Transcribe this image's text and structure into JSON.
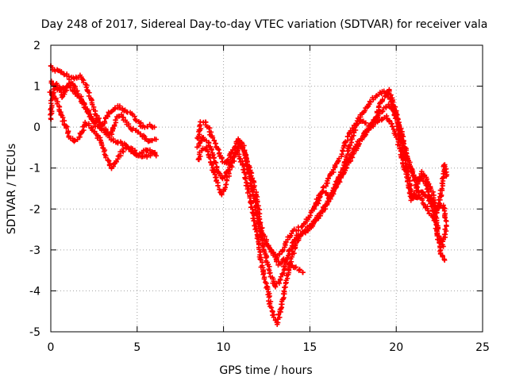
{
  "chart_data": {
    "type": "scatter",
    "title": "Day 248 of 2017, Sidereal Day-to-day VTEC variation (SDTVAR) for receiver vala",
    "xlabel": "GPS time / hours",
    "ylabel": "SDTVAR / TECUs",
    "xlim": [
      0,
      25
    ],
    "ylim": [
      -5,
      2
    ],
    "xticks": [
      0,
      5,
      10,
      15,
      20,
      25
    ],
    "yticks": [
      2,
      1,
      0,
      -1,
      -2,
      -3,
      -4,
      -5
    ],
    "grid": true,
    "legend": "none",
    "marker": "plus",
    "color": "#ff0000",
    "series": [
      {
        "name": "trace-1",
        "x": [
          0.0,
          0.2,
          0.5,
          0.8,
          1.1,
          1.4,
          1.7,
          2.0,
          2.3,
          2.6,
          2.9,
          3.2,
          3.5,
          3.8,
          4.1,
          4.4,
          4.7,
          5.0,
          5.3,
          5.6,
          5.9,
          6.1
        ],
        "y": [
          1.5,
          1.4,
          1.35,
          1.3,
          1.2,
          1.2,
          1.25,
          1.05,
          0.7,
          0.35,
          0.05,
          -0.1,
          -0.2,
          0.2,
          0.3,
          0.1,
          -0.05,
          -0.1,
          -0.2,
          -0.35,
          -0.3,
          -0.3
        ]
      },
      {
        "name": "trace-2",
        "x": [
          0.0,
          0.2,
          0.5,
          0.8,
          1.1,
          1.4,
          1.7,
          2.0,
          2.3,
          2.6,
          2.9,
          3.2,
          3.5,
          3.8,
          4.1,
          4.4,
          4.7,
          5.0,
          5.3,
          5.6,
          5.9,
          6.1
        ],
        "y": [
          1.1,
          1.0,
          0.9,
          0.95,
          1.0,
          0.85,
          0.7,
          0.5,
          0.25,
          0.05,
          -0.05,
          -0.15,
          -0.3,
          -0.35,
          -0.4,
          -0.45,
          -0.6,
          -0.7,
          -0.6,
          -0.55,
          -0.6,
          -0.7
        ]
      },
      {
        "name": "trace-3",
        "x": [
          0.0,
          0.2,
          0.5,
          0.8,
          1.1,
          1.4,
          1.7,
          2.0,
          2.3,
          2.6,
          2.9,
          3.2,
          3.5,
          3.8,
          4.1,
          4.4,
          4.7,
          5.0,
          5.3,
          5.6,
          5.9,
          6.1
        ],
        "y": [
          0.85,
          0.75,
          0.45,
          0.1,
          -0.25,
          -0.35,
          -0.2,
          0.1,
          0.0,
          -0.15,
          -0.35,
          -0.7,
          -1.0,
          -0.8,
          -0.6,
          -0.5,
          -0.55,
          -0.65,
          -0.75,
          -0.7,
          -0.65,
          -0.7
        ]
      },
      {
        "name": "trace-4",
        "x": [
          0.0,
          0.05,
          0.15,
          0.3,
          0.5,
          0.7,
          0.9,
          1.2,
          1.5,
          1.8,
          2.1,
          2.4,
          2.7,
          3.0,
          3.3,
          3.6,
          3.9,
          4.2,
          4.5,
          4.8,
          5.1,
          5.4,
          5.7,
          6.0
        ],
        "y": [
          0.2,
          0.6,
          0.9,
          1.05,
          0.95,
          0.75,
          0.95,
          1.1,
          0.9,
          0.65,
          0.4,
          0.2,
          0.1,
          0.05,
          0.3,
          0.45,
          0.5,
          0.45,
          0.35,
          0.25,
          0.1,
          0.0,
          0.05,
          0.0
        ]
      },
      {
        "name": "trace-5",
        "x": [
          8.5,
          8.7,
          9.0,
          9.3,
          9.6,
          9.9,
          10.2,
          10.5,
          10.8,
          11.1,
          11.4,
          11.7,
          12.0,
          12.2,
          12.5,
          12.8,
          13.1,
          13.4,
          13.7,
          14.0,
          14.3,
          14.6,
          14.9,
          15.2,
          15.5,
          15.8,
          16.1,
          16.4,
          16.7,
          17.0,
          17.3,
          17.6,
          17.9,
          18.2,
          18.5,
          18.8,
          19.1,
          19.4,
          19.7,
          20.0,
          20.3,
          20.6,
          20.9,
          21.2,
          21.5,
          21.8,
          22.1,
          22.4,
          22.7,
          22.9
        ],
        "y": [
          -0.3,
          0.1,
          0.1,
          -0.2,
          -0.5,
          -0.8,
          -0.9,
          -0.6,
          -0.3,
          -0.4,
          -0.9,
          -1.3,
          -1.9,
          -2.5,
          -2.85,
          -3.05,
          -3.2,
          -3.05,
          -2.75,
          -2.55,
          -2.5,
          -2.4,
          -2.25,
          -2.0,
          -1.8,
          -1.5,
          -1.25,
          -1.0,
          -0.8,
          -0.45,
          -0.15,
          0.05,
          0.25,
          0.4,
          0.6,
          0.75,
          0.85,
          0.85,
          0.65,
          0.2,
          -0.4,
          -1.0,
          -1.6,
          -1.75,
          -1.55,
          -1.75,
          -1.8,
          -2.0,
          -1.9,
          -2.3
        ]
      },
      {
        "name": "trace-6",
        "x": [
          8.5,
          8.7,
          9.0,
          9.3,
          9.6,
          9.9,
          10.2,
          10.5,
          10.8,
          11.1,
          11.4,
          11.7,
          12.0,
          12.2,
          12.5,
          12.8,
          13.1,
          13.4,
          13.7,
          14.0,
          14.3,
          14.6,
          14.9,
          15.2,
          15.5,
          15.8,
          16.1,
          16.4,
          16.7,
          17.0,
          17.3,
          17.6,
          17.9,
          18.2,
          18.5,
          18.8,
          19.1,
          19.4,
          19.7,
          20.0,
          20.3,
          20.6,
          20.9,
          21.2,
          21.5,
          21.8,
          22.1,
          22.4,
          22.7,
          22.9
        ],
        "y": [
          -0.8,
          -0.6,
          -0.5,
          -0.9,
          -1.3,
          -1.65,
          -1.3,
          -0.9,
          -0.55,
          -0.9,
          -1.5,
          -2.1,
          -2.8,
          -3.35,
          -3.9,
          -4.5,
          -4.8,
          -4.3,
          -3.6,
          -3.1,
          -2.75,
          -2.55,
          -2.45,
          -2.35,
          -2.2,
          -2.0,
          -1.8,
          -1.5,
          -1.25,
          -1.0,
          -0.75,
          -0.5,
          -0.3,
          -0.15,
          0.0,
          0.1,
          0.2,
          0.25,
          0.1,
          -0.2,
          -0.65,
          -1.2,
          -1.8,
          -1.45,
          -1.1,
          -1.3,
          -1.6,
          -2.55,
          -2.9,
          -2.4
        ]
      },
      {
        "name": "trace-7",
        "x": [
          8.5,
          8.8,
          9.1,
          9.4,
          9.7,
          10.0,
          10.3,
          10.6,
          10.9,
          11.2,
          11.5,
          11.8,
          12.1,
          12.4,
          12.7,
          13.0,
          13.3,
          13.6,
          13.9,
          14.2,
          14.5,
          14.8,
          15.1,
          15.4,
          15.7,
          16.0,
          16.3,
          16.6,
          16.9,
          17.2,
          17.5,
          17.8,
          18.1,
          18.4,
          18.7,
          19.0,
          19.3,
          19.6,
          19.9,
          20.2,
          20.5,
          20.8,
          21.1,
          21.4,
          21.7,
          22.0,
          22.3,
          22.6,
          22.8
        ],
        "y": [
          -0.5,
          -0.25,
          -0.35,
          -0.7,
          -1.1,
          -1.25,
          -1.0,
          -0.7,
          -0.4,
          -0.6,
          -1.2,
          -1.8,
          -2.5,
          -3.1,
          -3.55,
          -3.9,
          -3.75,
          -3.3,
          -2.95,
          -2.7,
          -2.6,
          -2.55,
          -2.4,
          -2.2,
          -2.05,
          -1.85,
          -1.65,
          -1.4,
          -1.15,
          -0.9,
          -0.65,
          -0.45,
          -0.25,
          -0.05,
          0.15,
          0.3,
          0.45,
          0.55,
          0.4,
          0.05,
          -0.5,
          -0.95,
          -1.3,
          -1.25,
          -1.35,
          -1.8,
          -2.4,
          -3.1,
          -3.25
        ]
      },
      {
        "name": "trace-8",
        "x": [
          12.6,
          12.9,
          13.2,
          13.5,
          13.8,
          14.1,
          14.4,
          14.6
        ],
        "y": [
          -2.9,
          -3.1,
          -3.35,
          -3.25,
          -3.35,
          -3.4,
          -3.5,
          -3.55
        ]
      },
      {
        "name": "trace-9",
        "x": [
          15.2,
          15.5,
          15.8,
          16.1,
          16.4,
          16.7,
          17.0,
          17.3,
          17.6,
          17.9,
          18.2,
          18.5,
          18.8,
          19.1,
          19.4,
          19.6,
          19.9,
          20.2,
          20.5,
          20.8,
          21.1,
          21.4,
          21.7,
          22.0,
          22.3,
          22.6,
          22.8,
          22.9
        ],
        "y": [
          -2.0,
          -1.7,
          -1.55,
          -1.7,
          -1.5,
          -1.25,
          -0.9,
          -0.45,
          -0.05,
          0.2,
          0.1,
          0.0,
          0.25,
          0.6,
          0.8,
          0.9,
          0.5,
          -0.05,
          -0.55,
          -1.0,
          -1.3,
          -1.7,
          -1.9,
          -2.15,
          -2.2,
          -1.6,
          -0.9,
          -1.2
        ]
      }
    ]
  }
}
